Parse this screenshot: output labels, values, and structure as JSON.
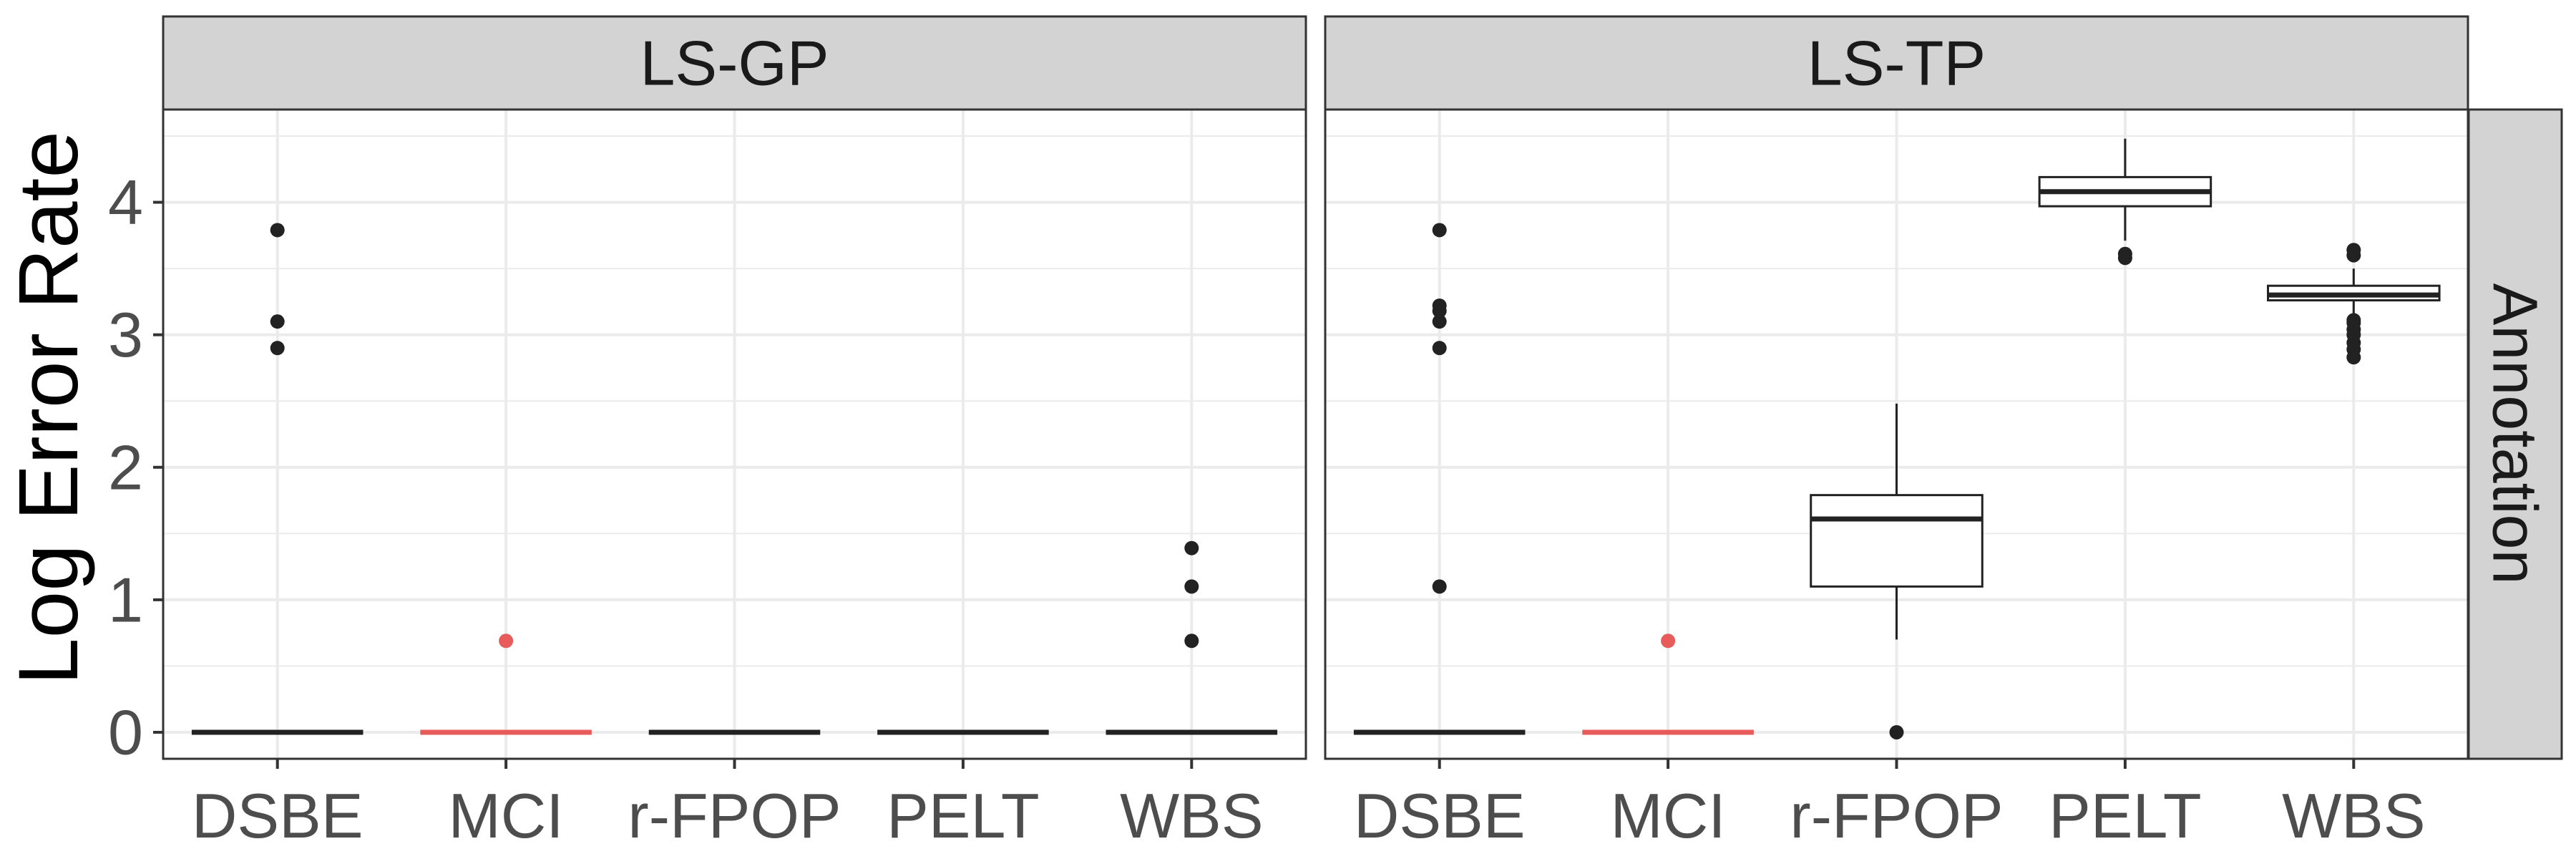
{
  "chart_data": {
    "type": "box",
    "title": "",
    "xlabel": "",
    "ylabel": "Log Error Rate",
    "ylim": [
      -0.2,
      4.7
    ],
    "yticks": [
      0,
      1,
      2,
      3,
      4
    ],
    "grid": true,
    "categories": [
      "DSBE",
      "MCI",
      "r-FPOP",
      "PELT",
      "WBS"
    ],
    "row_strip": "Annotation",
    "colors": {
      "default": "#222222",
      "highlight": "#e85b5b",
      "strip_fill": "#d3d3d3",
      "grid": "#ebebeb"
    },
    "highlight_category": "MCI",
    "panels": [
      {
        "label": "LS-GP",
        "boxes": [
          {
            "category": "DSBE",
            "min": 0,
            "q1": 0,
            "median": 0,
            "q3": 0,
            "max": 0,
            "outliers": [
              2.9,
              3.1,
              3.79
            ]
          },
          {
            "category": "MCI",
            "min": 0,
            "q1": 0,
            "median": 0,
            "q3": 0,
            "max": 0,
            "outliers": [
              0.69
            ]
          },
          {
            "category": "r-FPOP",
            "min": 0,
            "q1": 0,
            "median": 0,
            "q3": 0,
            "max": 0,
            "outliers": []
          },
          {
            "category": "PELT",
            "min": 0,
            "q1": 0,
            "median": 0,
            "q3": 0,
            "max": 0,
            "outliers": []
          },
          {
            "category": "WBS",
            "min": 0,
            "q1": 0,
            "median": 0,
            "q3": 0,
            "max": 0,
            "outliers": [
              0.69,
              1.1,
              1.39
            ]
          }
        ]
      },
      {
        "label": "LS-TP",
        "boxes": [
          {
            "category": "DSBE",
            "min": 0,
            "q1": 0,
            "median": 0,
            "q3": 0,
            "max": 0,
            "outliers": [
              1.1,
              2.9,
              3.1,
              3.18,
              3.22,
              3.79
            ]
          },
          {
            "category": "MCI",
            "min": 0,
            "q1": 0,
            "median": 0,
            "q3": 0,
            "max": 0,
            "outliers": [
              0.69
            ]
          },
          {
            "category": "r-FPOP",
            "min": 0.7,
            "q1": 1.1,
            "median": 1.61,
            "q3": 1.79,
            "max": 2.48,
            "outliers": [
              0
            ]
          },
          {
            "category": "PELT",
            "min": 3.71,
            "q1": 3.97,
            "median": 4.08,
            "q3": 4.19,
            "max": 4.48,
            "outliers": [
              3.58,
              3.61
            ]
          },
          {
            "category": "WBS",
            "min": 3.14,
            "q1": 3.26,
            "median": 3.3,
            "q3": 3.37,
            "max": 3.5,
            "outliers": [
              2.83,
              2.89,
              2.94,
              3.0,
              3.04,
              3.09,
              3.11,
              3.6,
              3.64
            ]
          }
        ]
      }
    ]
  }
}
